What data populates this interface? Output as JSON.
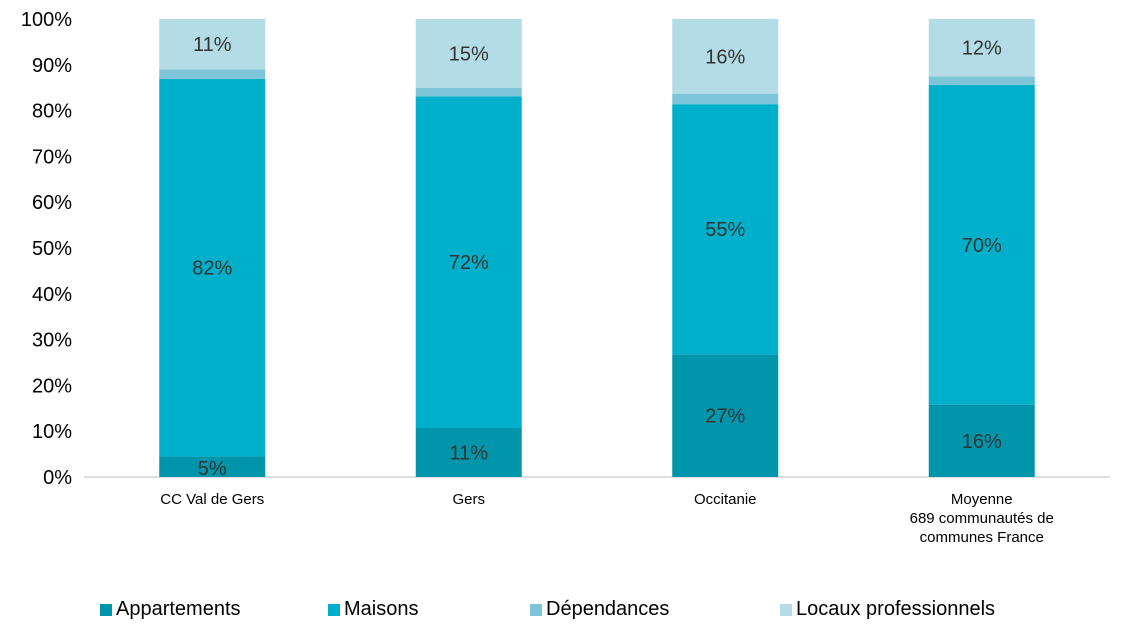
{
  "chart_data": {
    "type": "bar",
    "stacked": true,
    "categories": [
      "CC Val de Gers",
      "Gers",
      "Occitanie",
      "Moyenne\n689 communautés de\ncommunes France"
    ],
    "series": [
      {
        "name": "Appartements",
        "color": "#0095AB",
        "values": [
          4.5,
          10.7,
          26.8,
          15.8
        ],
        "labels": [
          "5%",
          "11%",
          "27%",
          "16%"
        ]
      },
      {
        "name": "Maisons",
        "color": "#00B0CA",
        "values": [
          82.4,
          72.4,
          54.6,
          69.8
        ],
        "labels": [
          "82%",
          "72%",
          "55%",
          "70%"
        ]
      },
      {
        "name": "Dépendances",
        "color": "#7FC5D9",
        "values": [
          2.1,
          1.9,
          2.3,
          1.9
        ],
        "labels": [
          "",
          "",
          "",
          ""
        ]
      },
      {
        "name": "Locaux professionnels",
        "color": "#B3DCE6",
        "values": [
          11.0,
          15.0,
          16.3,
          12.5
        ],
        "labels": [
          "11%",
          "15%",
          "16%",
          "12%"
        ]
      }
    ],
    "ylim": [
      0,
      100
    ],
    "yticks": [
      "0%",
      "10%",
      "20%",
      "30%",
      "40%",
      "50%",
      "60%",
      "70%",
      "80%",
      "90%",
      "100%"
    ],
    "grid": false,
    "legend_position": "bottom",
    "title": "",
    "xlabel": "",
    "ylabel": ""
  }
}
